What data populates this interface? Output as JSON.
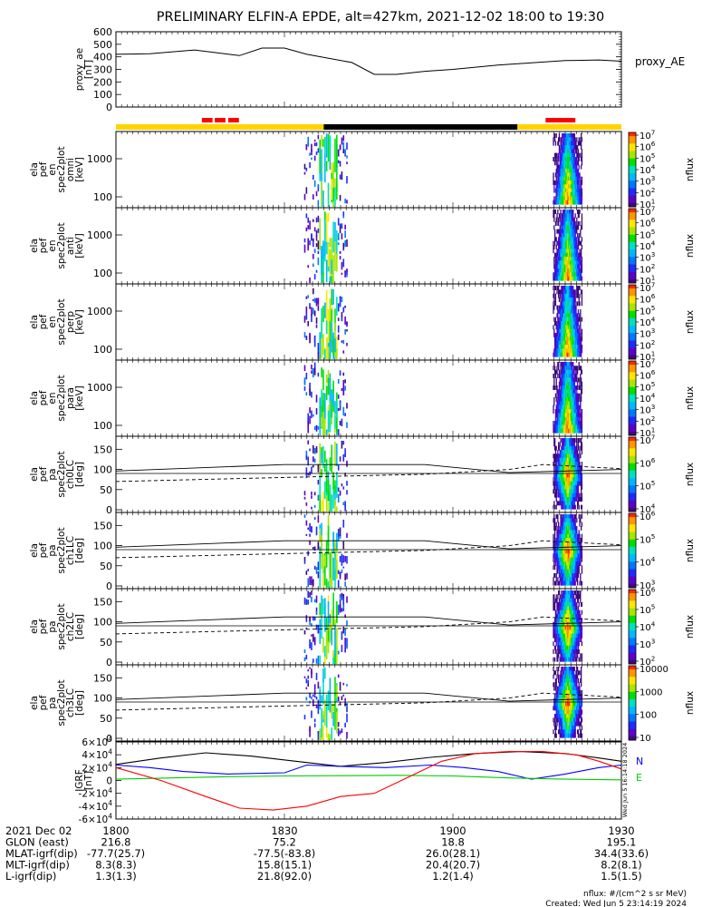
{
  "title": "PRELIMINARY ELFIN-A EPDE, alt=427km, 2021-12-02 18:00 to 19:30",
  "colors": {
    "line": "#000000",
    "accent_red": "#ff0000",
    "accent_yellow": "#ffd400",
    "grf_blue": "#0000ff",
    "grf_green": "#00cc00",
    "grf_red": "#ff0000"
  },
  "chart_data": [
    {
      "type": "line",
      "name": "proxy_ae",
      "ylabel": [
        "proxy_ae",
        "[nT]"
      ],
      "ylim": [
        0,
        600
      ],
      "yticks": [
        "0",
        "100",
        "200",
        "300",
        "400",
        "500",
        "600"
      ],
      "series_label": "proxy_AE",
      "x": [
        0,
        6,
        14,
        22,
        26,
        30,
        34,
        42,
        46,
        50,
        55,
        60,
        68,
        80,
        86,
        90
      ],
      "values": [
        420,
        425,
        455,
        410,
        470,
        470,
        420,
        355,
        260,
        260,
        285,
        300,
        335,
        370,
        375,
        365
      ]
    },
    {
      "type": "bar-strip",
      "name": "state strip",
      "segments": [
        {
          "from": 0,
          "to": 37,
          "color": "#ffd400"
        },
        {
          "from": 37,
          "to": 71.5,
          "color": "#000000"
        },
        {
          "from": 71.5,
          "to": 90,
          "color": "#ffd400"
        }
      ],
      "markers": [
        {
          "from": 15.3,
          "to": 17.2,
          "color": "#ff0000"
        },
        {
          "from": 17.6,
          "to": 19.5,
          "color": "#ff0000"
        },
        {
          "from": 20.0,
          "to": 21.9,
          "color": "#ff0000"
        },
        {
          "from": 76.5,
          "to": 81.8,
          "color": "#ff0000"
        }
      ]
    },
    {
      "type": "heatmap",
      "panels": [
        {
          "ylabel": [
            "ela",
            "pef",
            "en",
            "spec2plot",
            "omni",
            "[keV]"
          ],
          "yticks": [
            "100",
            "1000"
          ],
          "cbar_ticks": [
            "10^1",
            "10^2",
            "10^3",
            "10^4",
            "10^5",
            "10^6",
            "10^7"
          ],
          "cbar_label": "nflux"
        },
        {
          "ylabel": [
            "ela",
            "pef",
            "en",
            "spec2plot",
            "anti",
            "[keV]"
          ],
          "yticks": [
            "100",
            "1000"
          ],
          "cbar_ticks": [
            "10^1",
            "10^2",
            "10^3",
            "10^4",
            "10^5",
            "10^6",
            "10^7"
          ],
          "cbar_label": "nflux"
        },
        {
          "ylabel": [
            "ela",
            "pef",
            "en",
            "spec2plot",
            "perp",
            "[keV]"
          ],
          "yticks": [
            "100",
            "1000"
          ],
          "cbar_ticks": [
            "10^1",
            "10^2",
            "10^3",
            "10^4",
            "10^5",
            "10^6",
            "10^7"
          ],
          "cbar_label": "nflux"
        },
        {
          "ylabel": [
            "ela",
            "pef",
            "en",
            "spec2plot",
            "para",
            "[keV]"
          ],
          "yticks": [
            "100",
            "1000"
          ],
          "cbar_ticks": [
            "10^1",
            "10^2",
            "10^3",
            "10^4",
            "10^5",
            "10^6",
            "10^7"
          ],
          "cbar_label": "nflux"
        },
        {
          "ylabel": [
            "ela",
            "pef",
            "pa",
            "spec2plot",
            "ch0LC",
            "[deg]"
          ],
          "yticks": [
            "0",
            "50",
            "100",
            "150"
          ],
          "cbar_ticks": [
            "10^4",
            "10^5",
            "10^6",
            "10^7"
          ],
          "cbar_label": "nflux"
        },
        {
          "ylabel": [
            "ela",
            "pef",
            "pa",
            "spec2plot",
            "ch1LC",
            "[deg]"
          ],
          "yticks": [
            "0",
            "50",
            "100",
            "150"
          ],
          "cbar_ticks": [
            "10^3",
            "10^4",
            "10^5",
            "10^6"
          ],
          "cbar_label": "nflux"
        },
        {
          "ylabel": [
            "ela",
            "pef",
            "pa",
            "spec2plot",
            "ch2LC",
            "[deg]"
          ],
          "yticks": [
            "0",
            "50",
            "100",
            "150"
          ],
          "cbar_ticks": [
            "10^2",
            "10^3",
            "10^4",
            "10^5",
            "10^6"
          ],
          "cbar_label": "nflux"
        },
        {
          "ylabel": [
            "ela",
            "pef",
            "pa",
            "spec2plot",
            "ch3LC",
            "[deg]"
          ],
          "yticks": [
            "0",
            "50",
            "100",
            "150"
          ],
          "cbar_ticks": [
            "10",
            "100",
            "1000",
            "10000"
          ],
          "cbar_label": "nflux"
        }
      ]
    },
    {
      "type": "line",
      "name": "IGRF",
      "ylabel": [
        "IGRF",
        "[nT]"
      ],
      "ylim": [
        -60000,
        60000
      ],
      "yticks": [
        "-6×10^4",
        "-4×10^4",
        "-2×10^4",
        "0",
        "2×10^4",
        "4×10^4",
        "6×10^4"
      ],
      "legend": [
        "N",
        "E"
      ],
      "series": [
        {
          "color": "#000000",
          "x": [
            0,
            8,
            16,
            24,
            32,
            40,
            48,
            56,
            64,
            72,
            80,
            86,
            90
          ],
          "values": [
            25000,
            35000,
            43000,
            38000,
            30000,
            22000,
            28000,
            36000,
            42000,
            45000,
            42000,
            35000,
            30000
          ]
        },
        {
          "color": "#0000ff",
          "x": [
            0,
            6,
            12,
            20,
            30,
            34,
            40,
            48,
            56,
            62,
            68,
            74,
            80,
            86,
            90
          ],
          "values": [
            24000,
            20000,
            14000,
            10000,
            12000,
            24000,
            22000,
            20000,
            24000,
            20000,
            14000,
            2000,
            10000,
            20000,
            24000
          ]
        },
        {
          "color": "#00cc00",
          "x": [
            0,
            10,
            20,
            30,
            40,
            50,
            60,
            70,
            80,
            90
          ],
          "values": [
            2000,
            4000,
            6000,
            7000,
            7500,
            8000,
            7000,
            4000,
            2000,
            1000
          ]
        },
        {
          "color": "#ff0000",
          "x": [
            0,
            8,
            16,
            22,
            28,
            34,
            40,
            46,
            52,
            58,
            64,
            70,
            76,
            82,
            86,
            90
          ],
          "values": [
            20000,
            0,
            -25000,
            -43000,
            -46000,
            -40000,
            -25000,
            -20000,
            5000,
            30000,
            42000,
            45000,
            45000,
            40000,
            30000,
            18000
          ]
        }
      ]
    }
  ],
  "footer": {
    "rows": [
      {
        "label": "2021 Dec 02",
        "values": [
          "1800",
          "1830",
          "1900",
          "1930"
        ]
      },
      {
        "label": "GLON (east)",
        "values": [
          "216.8",
          "75.2",
          "18.8",
          "195.1"
        ]
      },
      {
        "label": "MLAT-igrf(dip)",
        "values": [
          "-77.7(25.7)",
          "-77.5(-83.8)",
          "26.0(28.1)",
          "34.4(33.6)"
        ]
      },
      {
        "label": "MLT-igrf(dip)",
        "values": [
          "8.3(8.3)",
          "15.8(15.1)",
          "20.4(20.7)",
          "8.2(8.1)"
        ]
      },
      {
        "label": "L-igrf(dip)",
        "values": [
          "1.3(1.3)",
          "21.8(92.0)",
          "1.2(1.4)",
          "1.5(1.5)"
        ]
      }
    ],
    "note1": "nflux: #/(cm^2 s sr MeV)",
    "note2": "Created: Wed Jun  5 23:14:19 2024",
    "side_stamp": "Wed Jun 5 16:14:18 2024"
  }
}
